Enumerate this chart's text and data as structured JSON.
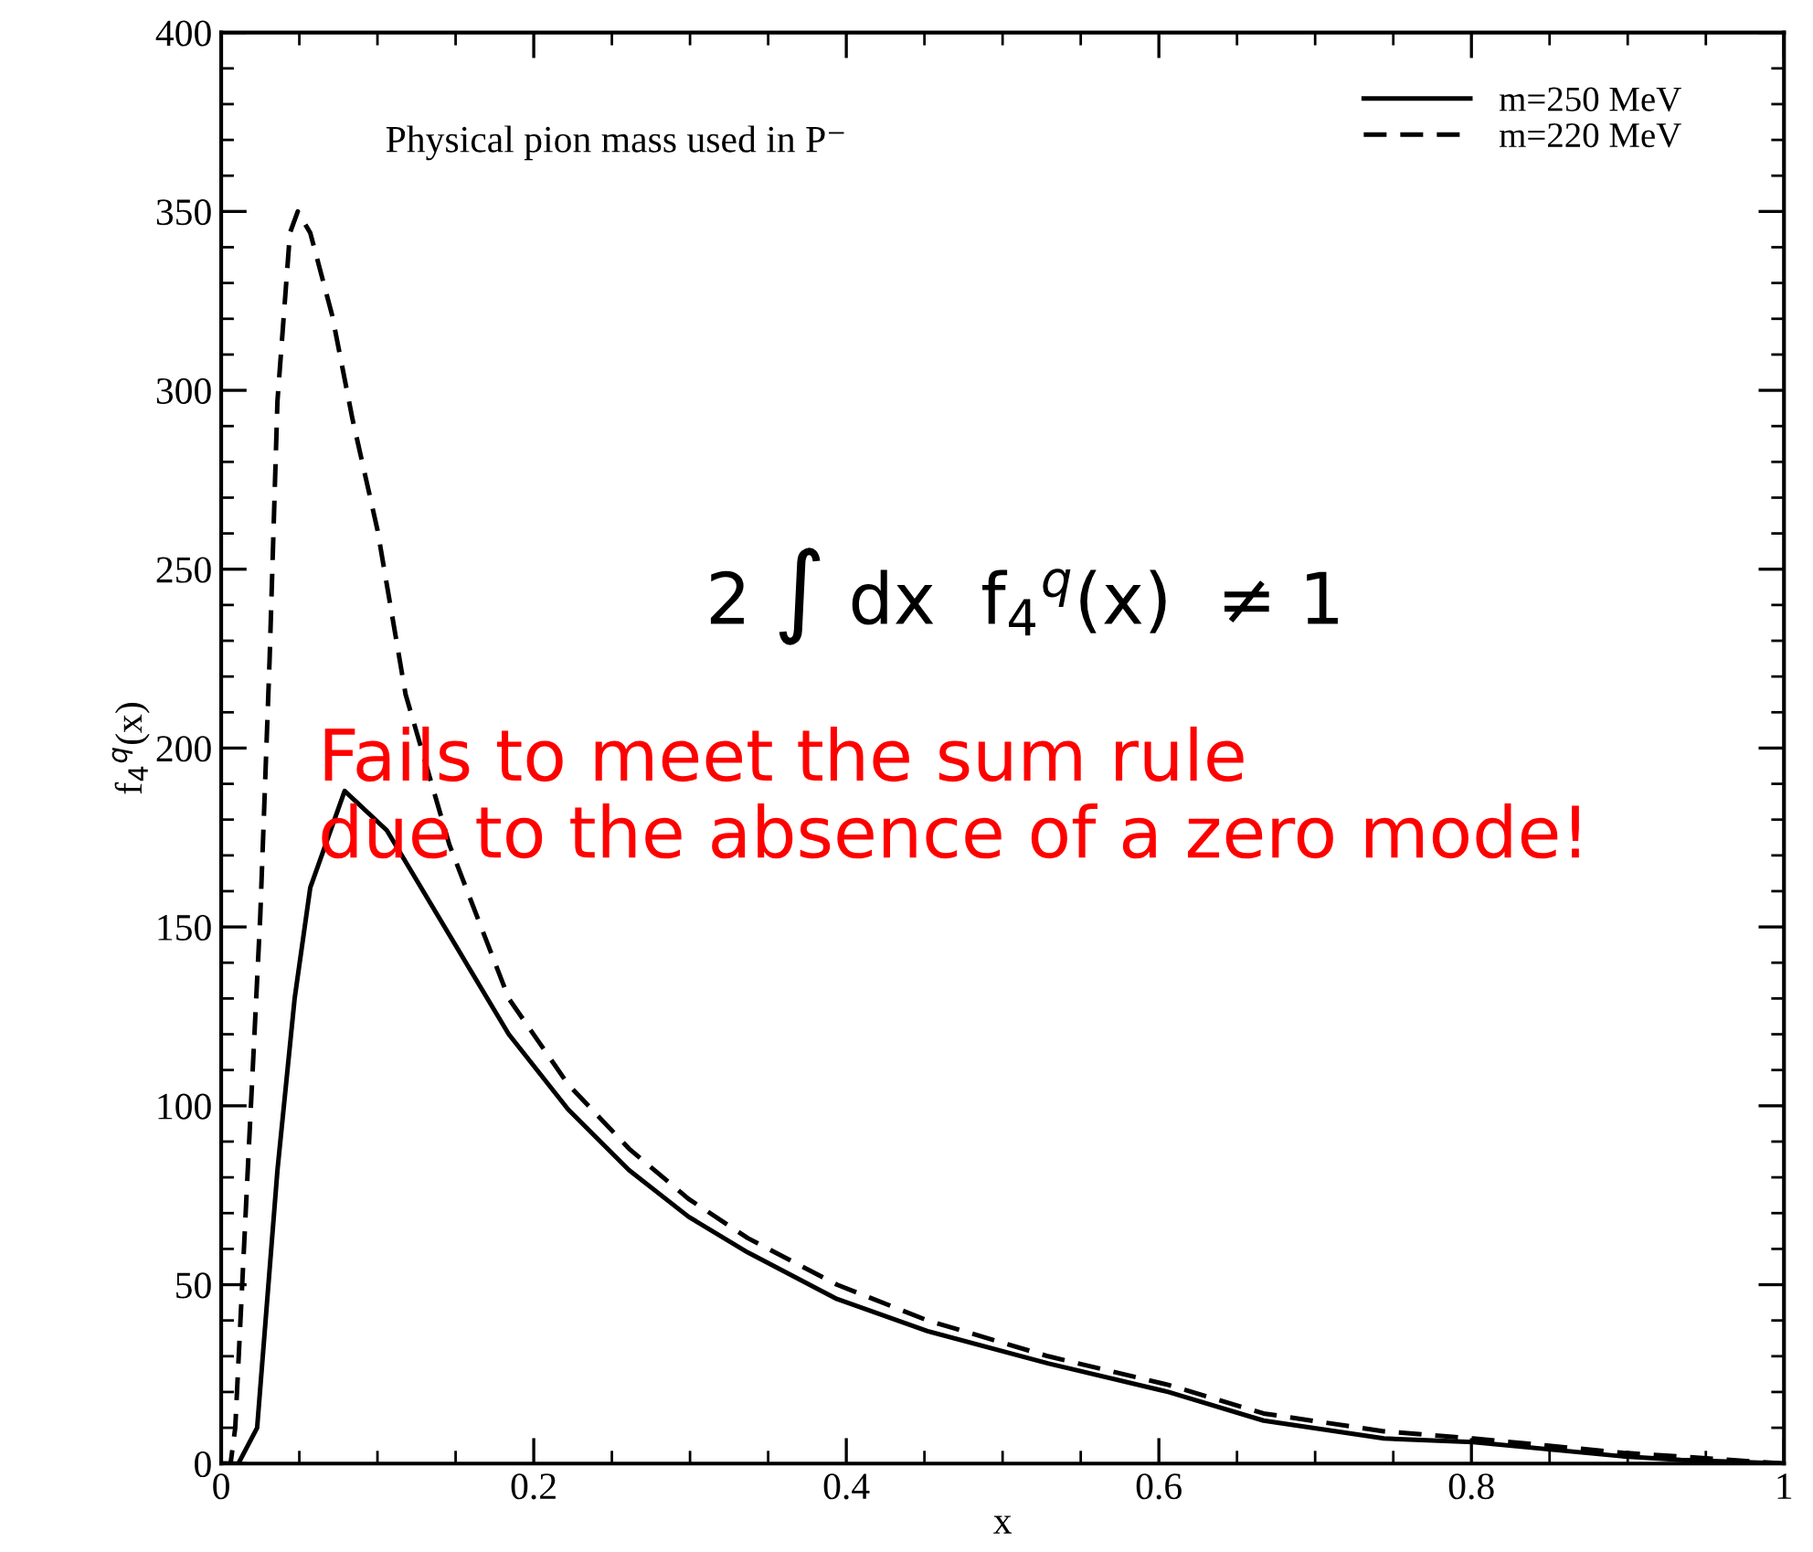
{
  "chart_data": {
    "type": "line",
    "xlabel": "x",
    "ylabel": "f$_{4}$$^{q}$(x)",
    "xlim": [
      0,
      1
    ],
    "ylim": [
      0,
      400
    ],
    "xticks": [
      0,
      0.2,
      0.4,
      0.6,
      0.8,
      1
    ],
    "yticks": [
      0,
      50,
      100,
      150,
      200,
      250,
      300,
      350,
      400
    ],
    "grid": false,
    "legend": "top right",
    "marker": "none",
    "series": [
      {
        "name": "m=250 MeV",
        "color": "#000000",
        "line_style": "solid",
        "x": [
          0,
          0.011,
          0.023,
          0.036,
          0.047,
          0.057,
          0.079,
          0.106,
          0.184,
          0.222,
          0.261,
          0.299,
          0.337,
          0.394,
          0.452,
          0.529,
          0.606,
          0.667,
          0.744,
          0.801,
          0.897,
          0.934,
          1
        ],
        "values": [
          0,
          0,
          10,
          82,
          130,
          161,
          188,
          177,
          120,
          99,
          82,
          69,
          59,
          46,
          37,
          28,
          20,
          12,
          7,
          6,
          2,
          1,
          0
        ]
      },
      {
        "name": "m=220 MeV",
        "color": "#000000",
        "line_style": "dashed",
        "x": [
          0,
          0.006,
          0.009,
          0.017,
          0.025,
          0.031,
          0.036,
          0.044,
          0.049,
          0.057,
          0.071,
          0.084,
          0.1,
          0.118,
          0.146,
          0.184,
          0.222,
          0.261,
          0.299,
          0.337,
          0.394,
          0.452,
          0.529,
          0.606,
          0.667,
          0.744,
          0.801,
          0.897,
          1
        ],
        "values": [
          0,
          0,
          10,
          82,
          153,
          225,
          297,
          344,
          350,
          344,
          321,
          292,
          261,
          215,
          173,
          130,
          106,
          88,
          74,
          63,
          50,
          40,
          30,
          22,
          14,
          9,
          7,
          3,
          0
        ]
      }
    ],
    "annotations": [
      "Physical pion mass used in P⁻",
      "2 ∫ dx  f$_{4}$$^{q}$(x)  ≠ 1",
      "Fails to meet the sum rule\ndue to the absence of a zero mode!"
    ]
  }
}
